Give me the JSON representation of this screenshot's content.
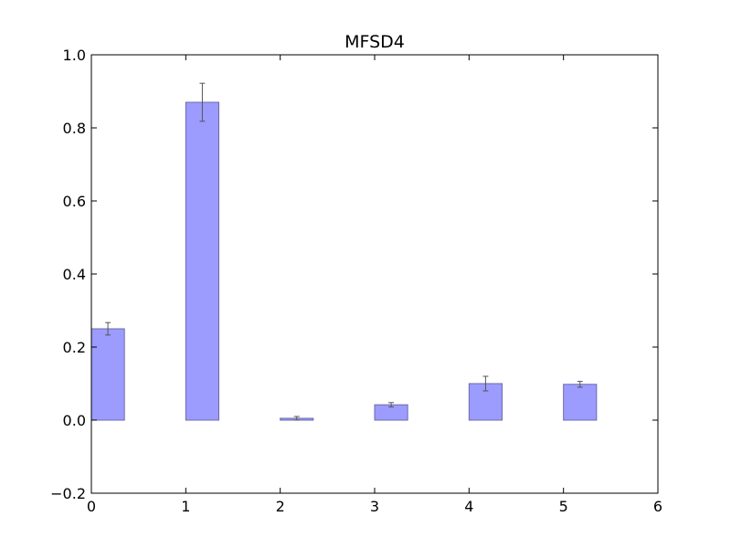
{
  "chart_data": {
    "type": "bar",
    "title": "MFSD4",
    "xlabel": "",
    "ylabel": "",
    "bars": [
      {
        "x": 0,
        "value": 0.25,
        "error": 0.017
      },
      {
        "x": 1,
        "value": 0.87,
        "error": 0.052
      },
      {
        "x": 2,
        "value": 0.005,
        "error": 0.005
      },
      {
        "x": 3,
        "value": 0.042,
        "error": 0.006
      },
      {
        "x": 4,
        "value": 0.1,
        "error": 0.02
      },
      {
        "x": 5,
        "value": 0.098,
        "error": 0.008
      }
    ],
    "bar_width": 0.35,
    "xlim": [
      0,
      6
    ],
    "ylim": [
      -0.2,
      1.0
    ],
    "xticks": [
      0,
      1,
      2,
      3,
      4,
      5,
      6
    ],
    "xtick_labels": [
      "0",
      "1",
      "2",
      "3",
      "4",
      "5",
      "6"
    ],
    "yticks": [
      -0.2,
      0.0,
      0.2,
      0.4,
      0.6,
      0.8,
      1.0
    ],
    "ytick_labels": [
      "−0.2",
      "0.0",
      "0.2",
      "0.4",
      "0.6",
      "0.8",
      "1.0"
    ],
    "grid": false,
    "colors": {
      "bar_fill": "#9c9cff",
      "bar_edge": "#6a6aa8",
      "error_bar": "#555555",
      "axes": "#000000"
    }
  }
}
